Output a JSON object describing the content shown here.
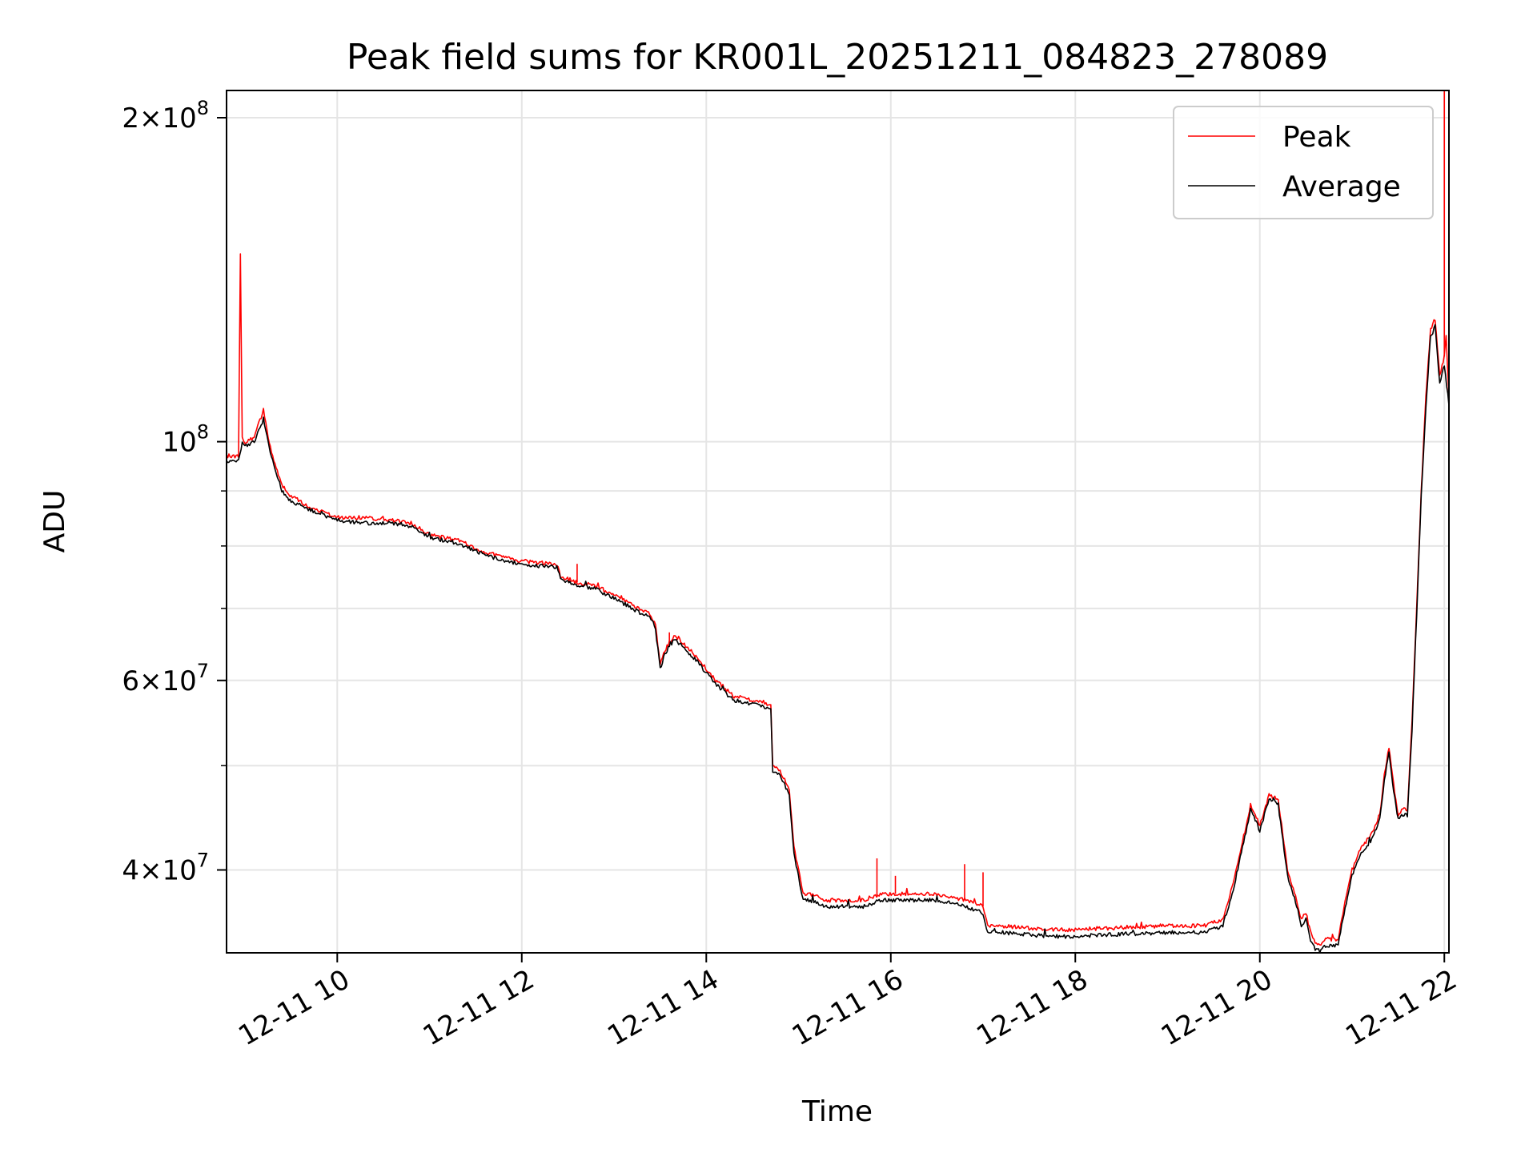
{
  "chart_data": {
    "type": "line",
    "title": "Peak field sums for KR001L_20251211_084823_278089",
    "xlabel": "Time",
    "ylabel": "ADU",
    "yscale": "log",
    "ylim": [
      33500000,
      212000000
    ],
    "xlim": [
      8.8,
      22.05
    ],
    "grid": true,
    "legend_position": "upper right",
    "x_ticks": [
      {
        "value": 10,
        "label": "12-11 10"
      },
      {
        "value": 12,
        "label": "12-11 12"
      },
      {
        "value": 14,
        "label": "12-11 14"
      },
      {
        "value": 16,
        "label": "12-11 16"
      },
      {
        "value": 18,
        "label": "12-11 18"
      },
      {
        "value": 20,
        "label": "12-11 20"
      },
      {
        "value": 22,
        "label": "12-11 22"
      }
    ],
    "y_ticks_major": [
      {
        "value": 200000000,
        "mantissa": "2",
        "exponent": "8"
      },
      {
        "value": 100000000,
        "mantissa": "",
        "exponent": "8"
      },
      {
        "value": 60000000,
        "mantissa": "6",
        "exponent": "7"
      },
      {
        "value": 40000000,
        "mantissa": "4",
        "exponent": "7"
      }
    ],
    "y_ticks_minor": [
      90000000,
      80000000,
      70000000,
      50000000
    ],
    "colors": {
      "peak": "#ff0000",
      "average": "#000000",
      "grid": "#e5e5e5",
      "axes": "#000000"
    },
    "series": [
      {
        "name": "Peak",
        "color": "#ff0000",
        "x": [
          8.8,
          8.93,
          8.95,
          8.97,
          9.0,
          9.1,
          9.2,
          9.25,
          9.3,
          9.4,
          9.5,
          9.7,
          10.0,
          10.3,
          10.6,
          10.8,
          11.0,
          11.3,
          11.6,
          11.8,
          12.0,
          12.3,
          12.38,
          12.42,
          12.6,
          12.8,
          13.0,
          13.2,
          13.4,
          13.45,
          13.5,
          13.55,
          13.65,
          13.75,
          13.9,
          14.1,
          14.3,
          14.5,
          14.7,
          14.72,
          14.8,
          14.9,
          14.95,
          15.05,
          15.1,
          15.3,
          15.5,
          15.7,
          15.9,
          16.2,
          16.5,
          16.8,
          17.0,
          17.05,
          17.2,
          17.5,
          17.8,
          18.0,
          18.3,
          18.6,
          19.0,
          19.4,
          19.6,
          19.7,
          19.8,
          19.9,
          20.0,
          20.1,
          20.2,
          20.3,
          20.4,
          20.45,
          20.5,
          20.55,
          20.6,
          20.65,
          20.7,
          20.85,
          20.9,
          21.0,
          21.1,
          21.2,
          21.3,
          21.35,
          21.4,
          21.45,
          21.5,
          21.55,
          21.6,
          21.65,
          21.7,
          21.75,
          21.8,
          21.85,
          21.9,
          21.95,
          22.0,
          22.02,
          22.05
        ],
        "y": [
          97000000,
          97000000,
          150000000,
          101000000,
          100000000,
          101000000,
          107000000,
          101000000,
          97000000,
          91000000,
          89000000,
          87000000,
          85000000,
          85000000,
          84500000,
          84000000,
          82000000,
          81000000,
          79000000,
          78000000,
          77500000,
          77000000,
          77000000,
          75000000,
          74000000,
          73500000,
          72000000,
          70500000,
          69000000,
          67500000,
          62000000,
          64000000,
          66000000,
          65000000,
          63000000,
          60000000,
          58000000,
          57500000,
          57000000,
          50000000,
          49500000,
          47500000,
          42000000,
          38000000,
          38000000,
          37500000,
          37500000,
          37500000,
          38000000,
          38000000,
          38000000,
          37500000,
          37000000,
          35500000,
          35500000,
          35300000,
          35200000,
          35200000,
          35300000,
          35400000,
          35500000,
          35500000,
          36000000,
          38500000,
          42000000,
          46000000,
          44000000,
          47000000,
          46500000,
          40000000,
          37500000,
          36000000,
          36500000,
          35000000,
          34200000,
          34000000,
          34500000,
          34500000,
          36500000,
          40000000,
          42000000,
          43000000,
          45000000,
          49000000,
          52000000,
          48000000,
          45000000,
          45500000,
          45500000,
          55000000,
          70000000,
          90000000,
          110000000,
          127000000,
          130000000,
          115000000,
          120000000,
          125000000,
          110000000
        ],
        "spikes": [
          [
            8.95,
            150000000
          ],
          [
            9.2,
            107000000
          ],
          [
            12.6,
            77000000
          ],
          [
            13.6,
            66500000
          ],
          [
            15.85,
            41000000
          ],
          [
            16.05,
            39500000
          ],
          [
            16.8,
            40500000
          ],
          [
            17.0,
            39800000
          ],
          [
            22.0,
            212000000
          ]
        ]
      },
      {
        "name": "Average",
        "color": "#000000",
        "x": [
          8.8,
          8.93,
          8.97,
          9.0,
          9.1,
          9.2,
          9.25,
          9.3,
          9.4,
          9.5,
          9.7,
          10.0,
          10.3,
          10.6,
          10.8,
          11.0,
          11.3,
          11.6,
          11.8,
          12.0,
          12.3,
          12.38,
          12.42,
          12.6,
          12.8,
          13.0,
          13.2,
          13.4,
          13.45,
          13.5,
          13.55,
          13.65,
          13.75,
          13.9,
          14.1,
          14.3,
          14.5,
          14.7,
          14.72,
          14.8,
          14.9,
          14.95,
          15.05,
          15.1,
          15.3,
          15.5,
          15.7,
          15.9,
          16.2,
          16.5,
          16.8,
          17.0,
          17.05,
          17.2,
          17.5,
          17.8,
          18.0,
          18.3,
          18.6,
          19.0,
          19.4,
          19.6,
          19.7,
          19.8,
          19.9,
          20.0,
          20.1,
          20.2,
          20.3,
          20.4,
          20.45,
          20.5,
          20.55,
          20.6,
          20.65,
          20.7,
          20.85,
          20.9,
          21.0,
          21.1,
          21.2,
          21.3,
          21.35,
          21.4,
          21.45,
          21.5,
          21.55,
          21.6,
          21.65,
          21.7,
          21.75,
          21.8,
          21.85,
          21.9,
          21.95,
          22.0,
          22.05
        ],
        "y": [
          96000000,
          96000000,
          99500000,
          99000000,
          100000000,
          105000000,
          100000000,
          96000000,
          90000000,
          88000000,
          86500000,
          84500000,
          84000000,
          84000000,
          83500000,
          81500000,
          80500000,
          78500000,
          77500000,
          77000000,
          76500000,
          76500000,
          74500000,
          73500000,
          73000000,
          71500000,
          70000000,
          68500000,
          67000000,
          61500000,
          63500000,
          65500000,
          64500000,
          62500000,
          59500000,
          57500000,
          57000000,
          56500000,
          49500000,
          49000000,
          47000000,
          41500000,
          37500000,
          37500000,
          37000000,
          37000000,
          37000000,
          37500000,
          37500000,
          37500000,
          37000000,
          36500000,
          35000000,
          35000000,
          34800000,
          34700000,
          34700000,
          34800000,
          34900000,
          35000000,
          35000000,
          35500000,
          38000000,
          41500000,
          45500000,
          43500000,
          46500000,
          46000000,
          39500000,
          37000000,
          35500000,
          36000000,
          34500000,
          33800000,
          33600000,
          34000000,
          34000000,
          36000000,
          39500000,
          41500000,
          42500000,
          44500000,
          48500000,
          51500000,
          47500000,
          44500000,
          45000000,
          45000000,
          54000000,
          69000000,
          89000000,
          108000000,
          125000000,
          128000000,
          113000000,
          118000000,
          108000000
        ]
      }
    ]
  },
  "legend": {
    "items": [
      {
        "label": "Peak",
        "color": "#ff0000"
      },
      {
        "label": "Average",
        "color": "#000000"
      }
    ]
  }
}
